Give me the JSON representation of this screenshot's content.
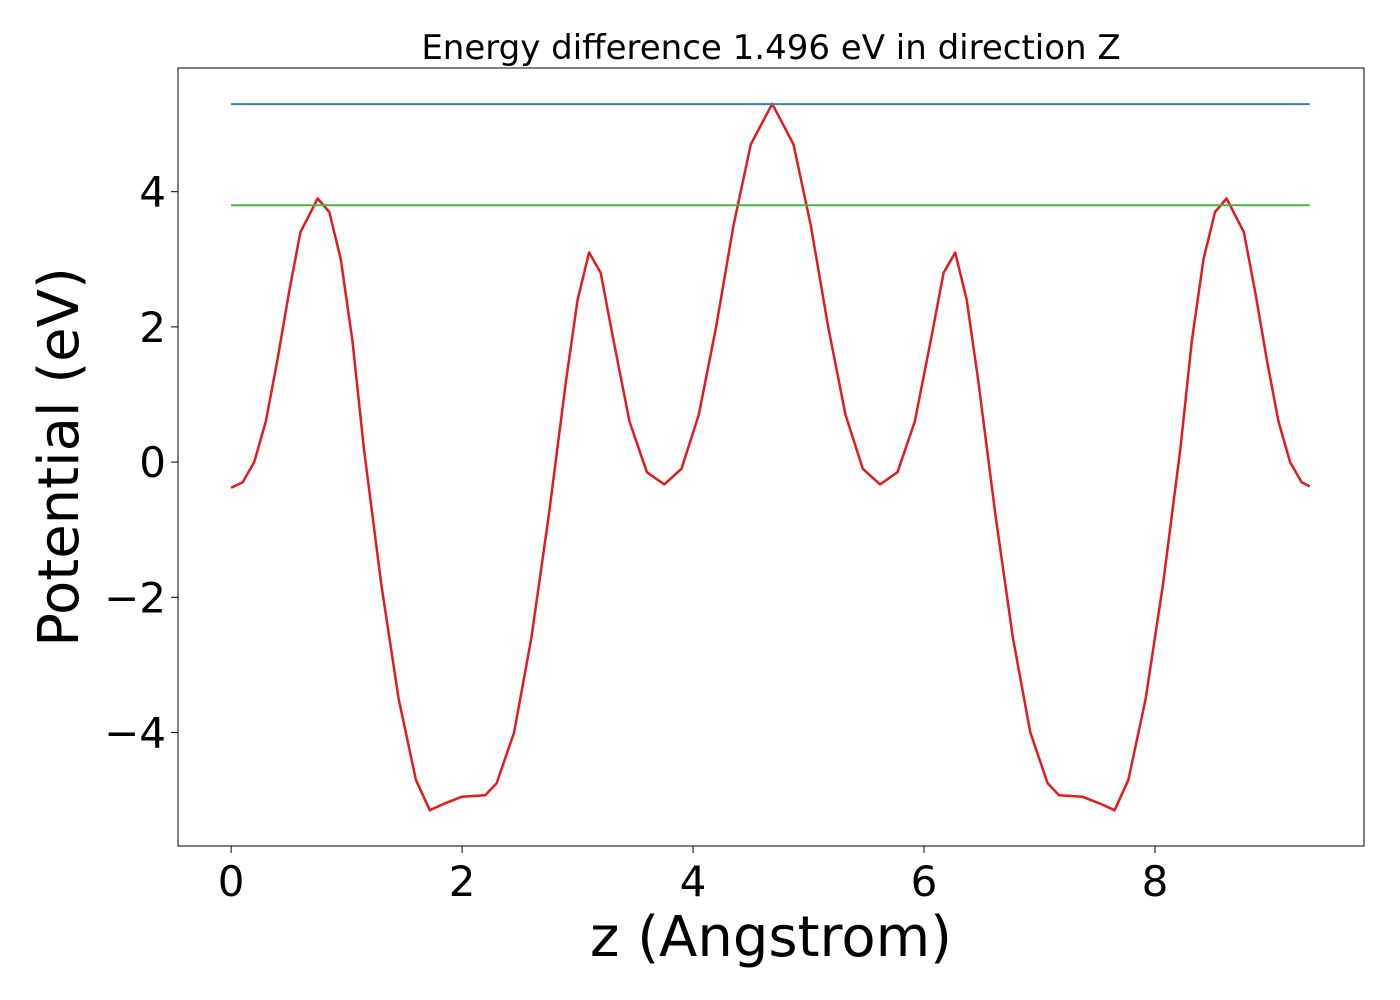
{
  "chart_data": {
    "type": "line",
    "title": "Energy difference 1.496 eV in direction Z",
    "xlabel": "z (Angstrom)",
    "ylabel": "Potential (eV)",
    "xlim": [
      -0.46,
      9.81
    ],
    "ylim": [
      -5.68,
      5.83
    ],
    "xticks": [
      0,
      2,
      4,
      6,
      8
    ],
    "yticks": [
      {
        "value": -4,
        "label": "−4"
      },
      {
        "value": -2,
        "label": "−2"
      },
      0,
      2,
      4
    ],
    "series": [
      {
        "color": "#e41a1c",
        "x": [
          0,
          0.1,
          0.2,
          0.3,
          0.4,
          0.5,
          0.6,
          0.75,
          0.85,
          0.95,
          1.05,
          1.15,
          1.3,
          1.45,
          1.6,
          1.72,
          1.85,
          2.0,
          2.2,
          2.3,
          2.45,
          2.6,
          2.75,
          2.9,
          3.0,
          3.1,
          3.2,
          3.3,
          3.45,
          3.6,
          3.75,
          3.9,
          4.05,
          4.2,
          4.35,
          4.5,
          4.685,
          4.87,
          5.02,
          5.17,
          5.32,
          5.47,
          5.62,
          5.77,
          5.92,
          6.07,
          6.17,
          6.27,
          6.37,
          6.47,
          6.62,
          6.77,
          6.92,
          7.07,
          7.17,
          7.37,
          7.52,
          7.65,
          7.77,
          7.92,
          8.07,
          8.22,
          8.32,
          8.42,
          8.52,
          8.62,
          8.77,
          8.87,
          8.97,
          9.07,
          9.17,
          9.27,
          9.34
        ],
        "values": [
          -0.38,
          -0.3,
          0.0,
          0.6,
          1.5,
          2.5,
          3.4,
          3.9,
          3.7,
          3.0,
          1.8,
          0.2,
          -1.8,
          -3.5,
          -4.7,
          -5.15,
          -5.05,
          -4.95,
          -4.93,
          -4.75,
          -4.0,
          -2.6,
          -0.8,
          1.2,
          2.4,
          3.1,
          2.8,
          1.9,
          0.6,
          -0.15,
          -0.33,
          -0.1,
          0.7,
          2.0,
          3.5,
          4.7,
          5.3,
          4.7,
          3.5,
          2.0,
          0.7,
          -0.1,
          -0.33,
          -0.15,
          0.6,
          1.9,
          2.8,
          3.1,
          2.4,
          1.2,
          -0.8,
          -2.6,
          -4.0,
          -4.75,
          -4.93,
          -4.95,
          -5.05,
          -5.15,
          -4.7,
          -3.5,
          -1.8,
          0.2,
          1.8,
          3.0,
          3.7,
          3.9,
          3.4,
          2.5,
          1.5,
          0.6,
          0.0,
          -0.3,
          -0.36
        ]
      },
      {
        "color": "#377eb8",
        "x": [
          0,
          9.34
        ],
        "values": [
          5.296,
          5.296
        ]
      },
      {
        "color": "#4daf4a",
        "x": [
          0,
          9.34
        ],
        "values": [
          3.8,
          3.8
        ]
      }
    ]
  }
}
